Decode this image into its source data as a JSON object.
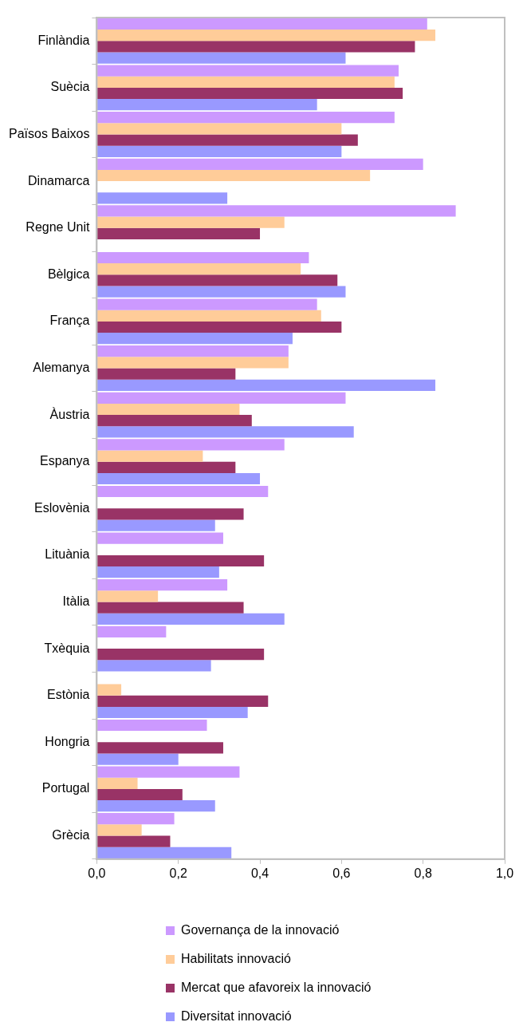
{
  "chart_data": {
    "type": "bar",
    "orientation": "horizontal",
    "categories": [
      "Finlàndia",
      "Suècia",
      "Països Baixos",
      "Dinamarca",
      "Regne Unit",
      "Bèlgica",
      "França",
      "Alemanya",
      "Àustria",
      "Espanya",
      "Eslovènia",
      "Lituània",
      "Itàlia",
      "Txèquia",
      "Estònia",
      "Hongria",
      "Portugal",
      "Grècia"
    ],
    "series": [
      {
        "name": "Governança de la innovació",
        "color": "#cc99ff",
        "values": [
          0.81,
          0.74,
          0.73,
          0.8,
          0.88,
          0.52,
          0.54,
          0.47,
          0.61,
          0.46,
          0.42,
          0.31,
          0.32,
          0.17,
          null,
          0.27,
          0.35,
          0.19
        ]
      },
      {
        "name": "Habilitats innovació",
        "color": "#ffcc99",
        "values": [
          0.83,
          0.73,
          0.6,
          0.67,
          0.46,
          0.5,
          0.55,
          0.47,
          0.35,
          0.26,
          null,
          null,
          0.15,
          null,
          0.06,
          null,
          0.1,
          0.11
        ]
      },
      {
        "name": "Mercat que afavoreix la innovació",
        "color": "#993366",
        "values": [
          0.78,
          0.75,
          0.64,
          null,
          0.4,
          0.59,
          0.6,
          0.34,
          0.38,
          0.34,
          0.36,
          0.41,
          0.36,
          0.41,
          0.42,
          0.31,
          0.21,
          0.18
        ]
      },
      {
        "name": "Diversitat innovació",
        "color": "#9999ff",
        "values": [
          0.61,
          0.54,
          0.6,
          0.32,
          null,
          0.61,
          0.48,
          0.83,
          0.63,
          0.4,
          0.29,
          0.3,
          0.46,
          0.28,
          0.37,
          0.2,
          0.29,
          0.33
        ]
      }
    ],
    "xlim": [
      0,
      1
    ],
    "xticks": [
      {
        "value": 0,
        "label": "0,0"
      },
      {
        "value": 0.2,
        "label": "0,2"
      },
      {
        "value": 0.4,
        "label": "0,4"
      },
      {
        "value": 0.6,
        "label": "0,6"
      },
      {
        "value": 0.8,
        "label": "0,8"
      },
      {
        "value": 1,
        "label": "1,0"
      }
    ],
    "grid": false,
    "legend": "bottom"
  }
}
